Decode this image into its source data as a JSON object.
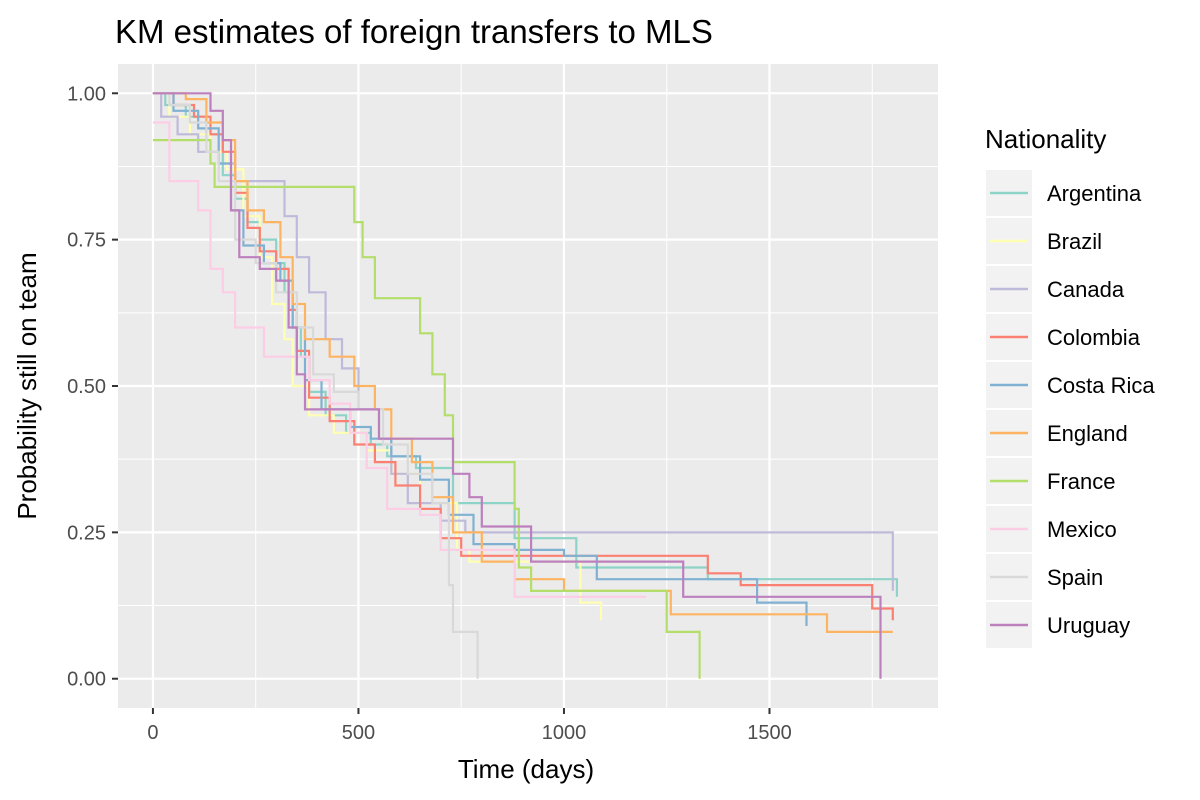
{
  "chart_data": {
    "type": "line",
    "step": true,
    "title": "KM estimates of foreign transfers to MLS",
    "xlabel": "Time (days)",
    "ylabel": "Probability still on team",
    "xlim": [
      -85,
      1910
    ],
    "ylim": [
      -0.05,
      1.05
    ],
    "x_ticks": [
      0,
      500,
      1000,
      1500
    ],
    "x_tick_labels": [
      "0",
      "500",
      "1000",
      "1500"
    ],
    "y_ticks": [
      0,
      0.25,
      0.5,
      0.75,
      1.0
    ],
    "y_tick_labels": [
      "0.00",
      "0.25",
      "0.50",
      "0.75",
      "1.00"
    ],
    "grid": true,
    "legend": {
      "title": "Nationality",
      "position": "right"
    },
    "series": [
      {
        "name": "Argentina",
        "color": "#8dd3c7",
        "points": [
          [
            0,
            1.0
          ],
          [
            30,
            0.98
          ],
          [
            80,
            0.96
          ],
          [
            130,
            0.93
          ],
          [
            170,
            0.86
          ],
          [
            200,
            0.82
          ],
          [
            230,
            0.78
          ],
          [
            260,
            0.75
          ],
          [
            300,
            0.71
          ],
          [
            320,
            0.66
          ],
          [
            340,
            0.6
          ],
          [
            360,
            0.55
          ],
          [
            380,
            0.49
          ],
          [
            420,
            0.45
          ],
          [
            470,
            0.42
          ],
          [
            530,
            0.4
          ],
          [
            570,
            0.38
          ],
          [
            640,
            0.36
          ],
          [
            730,
            0.3
          ],
          [
            880,
            0.24
          ],
          [
            1030,
            0.19
          ],
          [
            1200,
            0.19
          ],
          [
            1350,
            0.17
          ],
          [
            1800,
            0.17
          ],
          [
            1810,
            0.14
          ]
        ]
      },
      {
        "name": "Brazil",
        "color": "#ffffb3",
        "points": [
          [
            0,
            1.0
          ],
          [
            40,
            0.96
          ],
          [
            90,
            0.93
          ],
          [
            140,
            0.9
          ],
          [
            180,
            0.87
          ],
          [
            220,
            0.79
          ],
          [
            260,
            0.72
          ],
          [
            290,
            0.64
          ],
          [
            320,
            0.58
          ],
          [
            340,
            0.5
          ],
          [
            380,
            0.45
          ],
          [
            440,
            0.42
          ],
          [
            520,
            0.39
          ],
          [
            580,
            0.35
          ],
          [
            650,
            0.3
          ],
          [
            740,
            0.22
          ],
          [
            770,
            0.2
          ],
          [
            880,
            0.2
          ],
          [
            1040,
            0.13
          ],
          [
            1090,
            0.13
          ],
          [
            1090,
            0.1
          ]
        ]
      },
      {
        "name": "Canada",
        "color": "#bebada",
        "points": [
          [
            0,
            1.0
          ],
          [
            20,
            0.96
          ],
          [
            60,
            0.93
          ],
          [
            110,
            0.9
          ],
          [
            160,
            0.88
          ],
          [
            200,
            0.85
          ],
          [
            280,
            0.85
          ],
          [
            320,
            0.79
          ],
          [
            350,
            0.72
          ],
          [
            380,
            0.66
          ],
          [
            420,
            0.58
          ],
          [
            460,
            0.53
          ],
          [
            500,
            0.46
          ],
          [
            550,
            0.41
          ],
          [
            580,
            0.35
          ],
          [
            620,
            0.3
          ],
          [
            700,
            0.27
          ],
          [
            760,
            0.25
          ],
          [
            1800,
            0.25
          ],
          [
            1800,
            0.15
          ]
        ]
      },
      {
        "name": "Colombia",
        "color": "#fb8072",
        "points": [
          [
            0,
            1.0
          ],
          [
            50,
            0.98
          ],
          [
            100,
            0.96
          ],
          [
            140,
            0.93
          ],
          [
            170,
            0.9
          ],
          [
            200,
            0.83
          ],
          [
            230,
            0.77
          ],
          [
            260,
            0.73
          ],
          [
            300,
            0.7
          ],
          [
            330,
            0.63
          ],
          [
            350,
            0.56
          ],
          [
            380,
            0.48
          ],
          [
            430,
            0.44
          ],
          [
            490,
            0.4
          ],
          [
            540,
            0.37
          ],
          [
            590,
            0.33
          ],
          [
            650,
            0.29
          ],
          [
            700,
            0.24
          ],
          [
            750,
            0.21
          ],
          [
            1100,
            0.21
          ],
          [
            1350,
            0.18
          ],
          [
            1430,
            0.16
          ],
          [
            1750,
            0.12
          ],
          [
            1800,
            0.12
          ],
          [
            1800,
            0.1
          ]
        ]
      },
      {
        "name": "Costa Rica",
        "color": "#80b1d3",
        "points": [
          [
            0,
            1.0
          ],
          [
            50,
            0.97
          ],
          [
            110,
            0.94
          ],
          [
            160,
            0.88
          ],
          [
            190,
            0.8
          ],
          [
            220,
            0.74
          ],
          [
            270,
            0.71
          ],
          [
            310,
            0.68
          ],
          [
            340,
            0.6
          ],
          [
            370,
            0.51
          ],
          [
            410,
            0.46
          ],
          [
            480,
            0.43
          ],
          [
            530,
            0.41
          ],
          [
            580,
            0.38
          ],
          [
            650,
            0.34
          ],
          [
            720,
            0.28
          ],
          [
            780,
            0.23
          ],
          [
            880,
            0.22
          ],
          [
            1000,
            0.21
          ],
          [
            1080,
            0.17
          ],
          [
            1300,
            0.17
          ],
          [
            1470,
            0.13
          ],
          [
            1590,
            0.13
          ],
          [
            1590,
            0.09
          ]
        ]
      },
      {
        "name": "England",
        "color": "#fdb462",
        "points": [
          [
            0,
            1.0
          ],
          [
            80,
            0.99
          ],
          [
            130,
            0.95
          ],
          [
            170,
            0.92
          ],
          [
            200,
            0.85
          ],
          [
            230,
            0.8
          ],
          [
            270,
            0.78
          ],
          [
            310,
            0.72
          ],
          [
            340,
            0.64
          ],
          [
            370,
            0.58
          ],
          [
            430,
            0.55
          ],
          [
            490,
            0.5
          ],
          [
            540,
            0.46
          ],
          [
            580,
            0.41
          ],
          [
            630,
            0.37
          ],
          [
            680,
            0.31
          ],
          [
            730,
            0.25
          ],
          [
            800,
            0.2
          ],
          [
            880,
            0.17
          ],
          [
            1000,
            0.15
          ],
          [
            1250,
            0.15
          ],
          [
            1260,
            0.11
          ],
          [
            1640,
            0.11
          ],
          [
            1640,
            0.08
          ],
          [
            1800,
            0.08
          ]
        ]
      },
      {
        "name": "France",
        "color": "#b3de69",
        "points": [
          [
            0,
            0.92
          ],
          [
            140,
            0.88
          ],
          [
            150,
            0.84
          ],
          [
            490,
            0.84
          ],
          [
            490,
            0.78
          ],
          [
            510,
            0.72
          ],
          [
            540,
            0.65
          ],
          [
            650,
            0.59
          ],
          [
            680,
            0.52
          ],
          [
            710,
            0.45
          ],
          [
            730,
            0.37
          ],
          [
            870,
            0.37
          ],
          [
            880,
            0.29
          ],
          [
            890,
            0.19
          ],
          [
            920,
            0.15
          ],
          [
            1240,
            0.15
          ],
          [
            1250,
            0.08
          ],
          [
            1330,
            0.08
          ],
          [
            1330,
            0.0
          ]
        ]
      },
      {
        "name": "Mexico",
        "color": "#fccde5",
        "points": [
          [
            0,
            0.95
          ],
          [
            40,
            0.85
          ],
          [
            110,
            0.8
          ],
          [
            140,
            0.7
          ],
          [
            170,
            0.66
          ],
          [
            200,
            0.6
          ],
          [
            270,
            0.55
          ],
          [
            340,
            0.55
          ],
          [
            380,
            0.51
          ],
          [
            430,
            0.47
          ],
          [
            480,
            0.42
          ],
          [
            520,
            0.36
          ],
          [
            570,
            0.29
          ],
          [
            650,
            0.28
          ],
          [
            700,
            0.22
          ],
          [
            800,
            0.22
          ],
          [
            880,
            0.14
          ],
          [
            1040,
            0.14
          ],
          [
            1200,
            0.14
          ]
        ]
      },
      {
        "name": "Spain",
        "color": "#d9d9d9",
        "points": [
          [
            0,
            1.0
          ],
          [
            40,
            0.98
          ],
          [
            90,
            0.95
          ],
          [
            130,
            0.9
          ],
          [
            160,
            0.85
          ],
          [
            200,
            0.75
          ],
          [
            250,
            0.71
          ],
          [
            300,
            0.66
          ],
          [
            350,
            0.6
          ],
          [
            390,
            0.52
          ],
          [
            440,
            0.49
          ],
          [
            500,
            0.46
          ],
          [
            560,
            0.4
          ],
          [
            620,
            0.35
          ],
          [
            680,
            0.3
          ],
          [
            720,
            0.16
          ],
          [
            730,
            0.08
          ],
          [
            790,
            0.08
          ],
          [
            790,
            0.0
          ]
        ]
      },
      {
        "name": "Uruguay",
        "color": "#bc80bd",
        "points": [
          [
            0,
            1.0
          ],
          [
            140,
            1.0
          ],
          [
            140,
            0.97
          ],
          [
            170,
            0.92
          ],
          [
            190,
            0.8
          ],
          [
            210,
            0.72
          ],
          [
            240,
            0.72
          ],
          [
            260,
            0.7
          ],
          [
            300,
            0.68
          ],
          [
            330,
            0.6
          ],
          [
            350,
            0.52
          ],
          [
            370,
            0.46
          ],
          [
            430,
            0.46
          ],
          [
            490,
            0.46
          ],
          [
            550,
            0.41
          ],
          [
            680,
            0.41
          ],
          [
            730,
            0.35
          ],
          [
            770,
            0.31
          ],
          [
            800,
            0.26
          ],
          [
            880,
            0.26
          ],
          [
            920,
            0.2
          ],
          [
            1280,
            0.2
          ],
          [
            1290,
            0.14
          ],
          [
            1770,
            0.14
          ],
          [
            1770,
            0.0
          ]
        ]
      }
    ]
  }
}
